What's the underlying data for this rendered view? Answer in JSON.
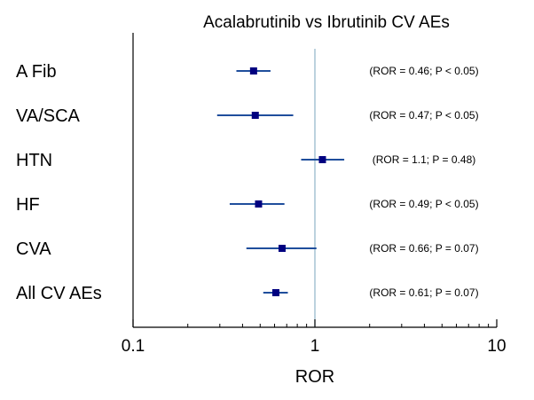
{
  "chart_data": {
    "type": "scatter",
    "title": "Acalabrutinib vs Ibrutinib CV AEs",
    "xlabel": "ROR",
    "ylabel": "",
    "x_scale": "log",
    "xlim": [
      0.1,
      10
    ],
    "x_ticks": [
      0.1,
      1,
      10
    ],
    "x_tick_labels": [
      "0.1",
      "1",
      "10"
    ],
    "reference_line": 1,
    "grid": false,
    "marker_color": "#000080",
    "errorbar_color": "#1f4e9c",
    "reference_line_color": "#8fb3c8",
    "rows": [
      {
        "label": "A Fib",
        "ror": 0.46,
        "ci_low": 0.37,
        "ci_high": 0.57,
        "annotation": "(ROR = 0.46; P < 0.05)"
      },
      {
        "label": "VA/SCA",
        "ror": 0.47,
        "ci_low": 0.29,
        "ci_high": 0.76,
        "annotation": "(ROR = 0.47; P < 0.05)"
      },
      {
        "label": "HTN",
        "ror": 1.1,
        "ci_low": 0.84,
        "ci_high": 1.45,
        "annotation": "(ROR = 1.1; P = 0.48)"
      },
      {
        "label": "HF",
        "ror": 0.49,
        "ci_low": 0.34,
        "ci_high": 0.68,
        "annotation": "(ROR = 0.49; P < 0.05)"
      },
      {
        "label": "CVA",
        "ror": 0.66,
        "ci_low": 0.42,
        "ci_high": 1.02,
        "annotation": "(ROR = 0.66; P = 0.07)"
      },
      {
        "label": "All CV AEs",
        "ror": 0.61,
        "ci_low": 0.52,
        "ci_high": 0.71,
        "annotation": "(ROR = 0.61; P = 0.07)"
      }
    ]
  }
}
